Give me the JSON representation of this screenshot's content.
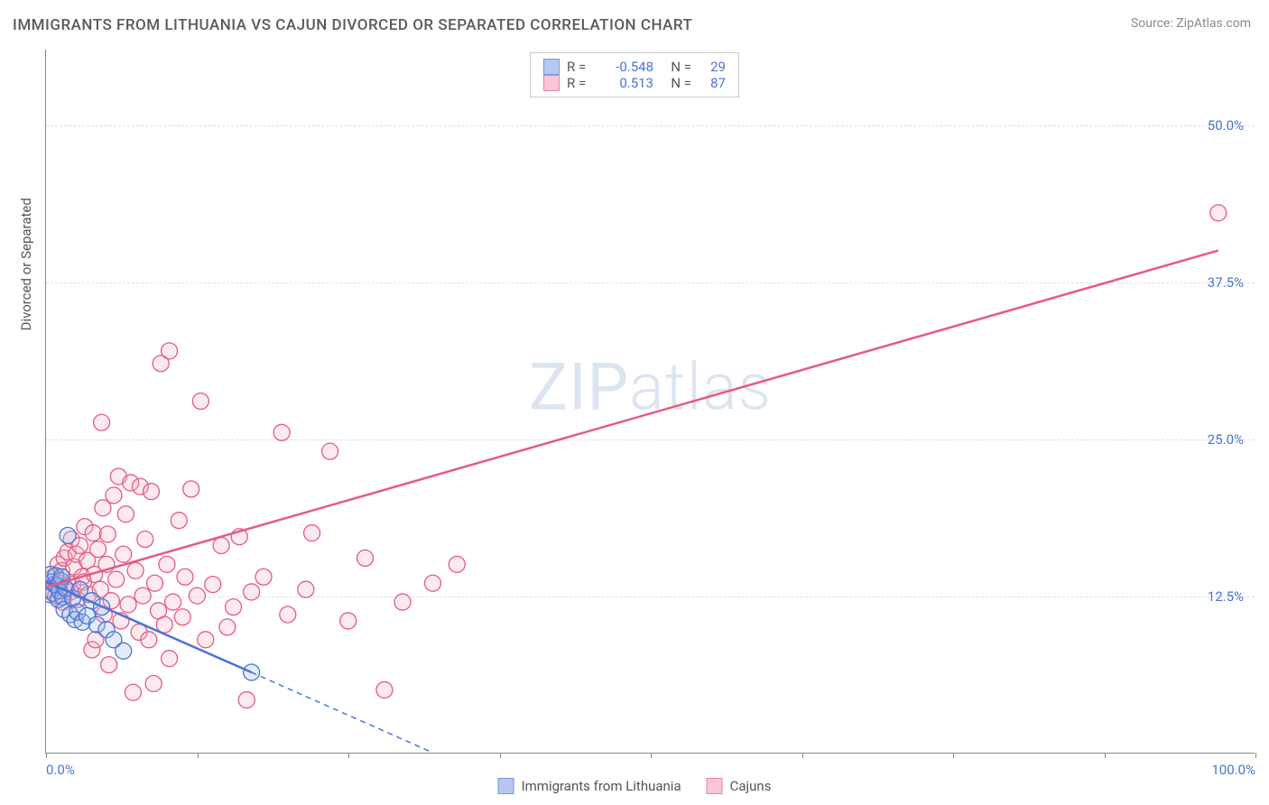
{
  "title": "IMMIGRANTS FROM LITHUANIA VS CAJUN DIVORCED OR SEPARATED CORRELATION CHART",
  "source_label": "Source:",
  "source_name": "ZipAtlas.com",
  "yaxis_title": "Divorced or Separated",
  "watermark": {
    "a": "ZIP",
    "b": "atlas"
  },
  "chart": {
    "type": "scatter",
    "xlim": [
      0,
      100
    ],
    "ylim": [
      0,
      56
    ],
    "xtick_positions": [
      0,
      12.5,
      25,
      37.5,
      50,
      62.5,
      75,
      87.5,
      100
    ],
    "xtick_labels": {
      "0": "0.0%",
      "100": "100.0%"
    },
    "ytick_positions": [
      12.5,
      25,
      37.5,
      50
    ],
    "ytick_labels": [
      "12.5%",
      "25.0%",
      "37.5%",
      "50.0%"
    ],
    "grid_color": "#dddddd",
    "axis_color": "#888888",
    "background_color": "#ffffff",
    "marker_radius": 9,
    "marker_fill_opacity": 0.28,
    "marker_stroke_width": 1.3,
    "line_width": 2.5,
    "dash_pattern": "6,5",
    "series": [
      {
        "key": "lithuania",
        "label": "Immigrants from Lithuania",
        "color_stroke": "#4a74d6",
        "color_fill": "#9db8ec",
        "r": "-0.548",
        "n": "29",
        "trend_solid": {
          "x1": 0,
          "y1": 13.6,
          "x2": 17,
          "y2": 6.4
        },
        "trend_dash": {
          "x1": 17,
          "y1": 6.4,
          "x2": 32,
          "y2": 0
        },
        "points": [
          [
            0.3,
            12.6
          ],
          [
            0.4,
            14.2
          ],
          [
            0.5,
            13.6
          ],
          [
            0.6,
            12.7
          ],
          [
            0.7,
            13.4
          ],
          [
            0.8,
            14.1
          ],
          [
            0.9,
            13.3
          ],
          [
            1.0,
            12.2
          ],
          [
            1.1,
            12.9
          ],
          [
            1.2,
            13.7
          ],
          [
            1.3,
            14.0
          ],
          [
            1.4,
            12.4
          ],
          [
            1.5,
            11.4
          ],
          [
            1.6,
            13.1
          ],
          [
            1.8,
            17.3
          ],
          [
            2.0,
            11.0
          ],
          [
            2.2,
            12.3
          ],
          [
            2.4,
            10.6
          ],
          [
            2.6,
            11.2
          ],
          [
            2.8,
            13.0
          ],
          [
            3.0,
            10.4
          ],
          [
            3.4,
            10.9
          ],
          [
            3.8,
            12.1
          ],
          [
            4.2,
            10.2
          ],
          [
            4.6,
            11.6
          ],
          [
            5.0,
            9.8
          ],
          [
            5.6,
            9.0
          ],
          [
            6.4,
            8.1
          ],
          [
            17.0,
            6.4
          ]
        ]
      },
      {
        "key": "cajuns",
        "label": "Cajuns",
        "color_stroke": "#e65a84",
        "color_fill": "#f6b4c7",
        "r": "0.513",
        "n": "87",
        "trend_solid": {
          "x1": 0,
          "y1": 13.2,
          "x2": 97,
          "y2": 40.0
        },
        "trend_dash": null,
        "points": [
          [
            0.4,
            13.0
          ],
          [
            0.6,
            14.0
          ],
          [
            0.8,
            12.5
          ],
          [
            1.0,
            15.0
          ],
          [
            1.1,
            13.5
          ],
          [
            1.3,
            14.5
          ],
          [
            1.4,
            12.0
          ],
          [
            1.5,
            15.5
          ],
          [
            1.7,
            13.0
          ],
          [
            1.8,
            16.0
          ],
          [
            2.0,
            12.8
          ],
          [
            2.1,
            17.0
          ],
          [
            2.2,
            13.4
          ],
          [
            2.3,
            14.8
          ],
          [
            2.5,
            15.8
          ],
          [
            2.6,
            12.2
          ],
          [
            2.8,
            16.5
          ],
          [
            3.0,
            14.0
          ],
          [
            3.1,
            13.6
          ],
          [
            3.2,
            18.0
          ],
          [
            3.4,
            15.3
          ],
          [
            3.5,
            12.6
          ],
          [
            3.8,
            8.2
          ],
          [
            3.9,
            17.5
          ],
          [
            4.0,
            14.2
          ],
          [
            4.1,
            9.0
          ],
          [
            4.3,
            16.2
          ],
          [
            4.5,
            13.0
          ],
          [
            4.6,
            26.3
          ],
          [
            4.7,
            19.5
          ],
          [
            4.8,
            11.0
          ],
          [
            5.0,
            15.0
          ],
          [
            5.1,
            17.4
          ],
          [
            5.2,
            7.0
          ],
          [
            5.4,
            12.1
          ],
          [
            5.6,
            20.5
          ],
          [
            5.8,
            13.8
          ],
          [
            6.0,
            22.0
          ],
          [
            6.2,
            10.5
          ],
          [
            6.4,
            15.8
          ],
          [
            6.6,
            19.0
          ],
          [
            6.8,
            11.8
          ],
          [
            7.0,
            21.5
          ],
          [
            7.2,
            4.8
          ],
          [
            7.4,
            14.5
          ],
          [
            7.7,
            9.6
          ],
          [
            7.8,
            21.2
          ],
          [
            8.0,
            12.5
          ],
          [
            8.2,
            17.0
          ],
          [
            8.5,
            9.0
          ],
          [
            8.7,
            20.8
          ],
          [
            8.9,
            5.5
          ],
          [
            9.0,
            13.5
          ],
          [
            9.3,
            11.3
          ],
          [
            9.5,
            31.0
          ],
          [
            9.8,
            10.2
          ],
          [
            10.0,
            15.0
          ],
          [
            10.2,
            7.5
          ],
          [
            10.5,
            12.0
          ],
          [
            10.2,
            32.0
          ],
          [
            11.0,
            18.5
          ],
          [
            11.3,
            10.8
          ],
          [
            11.5,
            14.0
          ],
          [
            12.0,
            21.0
          ],
          [
            12.5,
            12.5
          ],
          [
            12.8,
            28.0
          ],
          [
            13.2,
            9.0
          ],
          [
            13.8,
            13.4
          ],
          [
            14.5,
            16.5
          ],
          [
            15.0,
            10.0
          ],
          [
            15.5,
            11.6
          ],
          [
            16.0,
            17.2
          ],
          [
            16.6,
            4.2
          ],
          [
            17.0,
            12.8
          ],
          [
            18.0,
            14.0
          ],
          [
            19.5,
            25.5
          ],
          [
            20.0,
            11.0
          ],
          [
            21.5,
            13.0
          ],
          [
            22.0,
            17.5
          ],
          [
            23.5,
            24.0
          ],
          [
            25.0,
            10.5
          ],
          [
            26.4,
            15.5
          ],
          [
            28.0,
            5.0
          ],
          [
            29.5,
            12.0
          ],
          [
            32.0,
            13.5
          ],
          [
            34.0,
            15.0
          ],
          [
            97.0,
            43.0
          ]
        ]
      }
    ]
  },
  "legend_top": {
    "r_label": "R =",
    "n_label": "N ="
  }
}
